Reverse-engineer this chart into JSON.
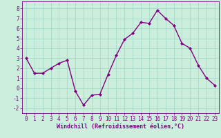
{
  "x": [
    0,
    1,
    2,
    3,
    4,
    5,
    6,
    7,
    8,
    9,
    10,
    11,
    12,
    13,
    14,
    15,
    16,
    17,
    18,
    19,
    20,
    21,
    22,
    23
  ],
  "y": [
    3.0,
    1.5,
    1.5,
    2.0,
    2.5,
    2.8,
    -0.3,
    -1.7,
    -0.7,
    -0.6,
    1.4,
    3.3,
    4.9,
    5.5,
    6.6,
    6.5,
    7.8,
    7.0,
    6.3,
    4.5,
    4.0,
    2.3,
    1.0,
    0.3
  ],
  "line_color": "#800080",
  "marker": "D",
  "marker_size": 2.0,
  "bg_color": "#cceedd",
  "grid_color": "#aaddcc",
  "xlabel": "Windchill (Refroidissement éolien,°C)",
  "xlabel_color": "#800080",
  "tick_color": "#800080",
  "ylim": [
    -2.5,
    8.7
  ],
  "xlim": [
    -0.5,
    23.5
  ],
  "yticks": [
    -2,
    -1,
    0,
    1,
    2,
    3,
    4,
    5,
    6,
    7,
    8
  ],
  "xticks": [
    0,
    1,
    2,
    3,
    4,
    5,
    6,
    7,
    8,
    9,
    10,
    11,
    12,
    13,
    14,
    15,
    16,
    17,
    18,
    19,
    20,
    21,
    22,
    23
  ],
  "line_width": 1.0,
  "tick_labelsize": 5.5,
  "xlabel_fontsize": 6.0
}
